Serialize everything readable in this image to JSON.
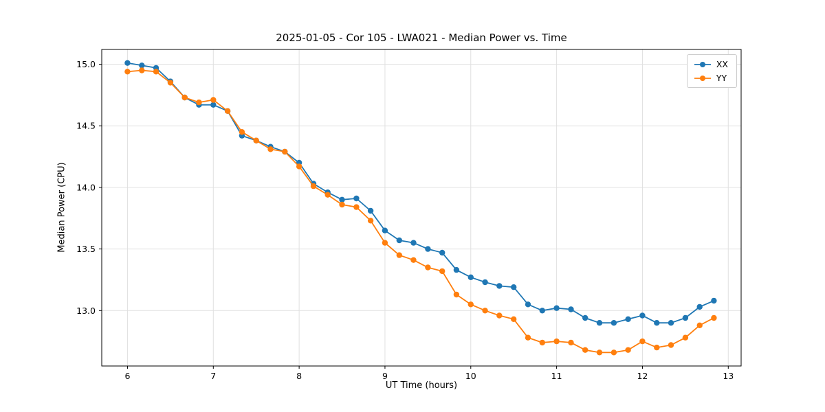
{
  "chart_data": {
    "type": "line",
    "title": "2025-01-05 - Cor 105 - LWA021 - Median Power vs. Time",
    "xlabel": "UT Time (hours)",
    "ylabel": "Median Power (CPU)",
    "xlim": [
      5.7,
      13.15
    ],
    "ylim": [
      12.55,
      15.12
    ],
    "xticks": [
      6,
      7,
      8,
      9,
      10,
      11,
      12,
      13
    ],
    "yticks": [
      13.0,
      13.5,
      14.0,
      14.5,
      15.0
    ],
    "ytick_labels": [
      "13.0",
      "13.5",
      "14.0",
      "14.5",
      "15.0"
    ],
    "grid": true,
    "legend_position": "upper right",
    "x": [
      6.0,
      6.167,
      6.333,
      6.5,
      6.667,
      6.833,
      7.0,
      7.167,
      7.333,
      7.5,
      7.667,
      7.833,
      8.0,
      8.167,
      8.333,
      8.5,
      8.667,
      8.833,
      9.0,
      9.167,
      9.333,
      9.5,
      9.667,
      9.833,
      10.0,
      10.167,
      10.333,
      10.5,
      10.667,
      10.833,
      11.0,
      11.167,
      11.333,
      11.5,
      11.667,
      11.833,
      12.0,
      12.167,
      12.333,
      12.5,
      12.667,
      12.833
    ],
    "series": [
      {
        "name": "XX",
        "color": "#1f77b4",
        "values": [
          15.01,
          14.99,
          14.97,
          14.86,
          14.73,
          14.67,
          14.67,
          14.62,
          14.42,
          14.38,
          14.33,
          14.29,
          14.2,
          14.03,
          13.96,
          13.9,
          13.91,
          13.81,
          13.65,
          13.57,
          13.55,
          13.5,
          13.47,
          13.33,
          13.27,
          13.23,
          13.2,
          13.19,
          13.05,
          13.0,
          13.02,
          13.01,
          12.94,
          12.9,
          12.9,
          12.93,
          12.96,
          12.9,
          12.9,
          12.94,
          13.03,
          13.08
        ]
      },
      {
        "name": "YY",
        "color": "#ff7f0e",
        "values": [
          14.94,
          14.95,
          14.94,
          14.85,
          14.73,
          14.69,
          14.71,
          14.62,
          14.45,
          14.38,
          14.31,
          14.29,
          14.17,
          14.01,
          13.94,
          13.86,
          13.84,
          13.73,
          13.55,
          13.45,
          13.41,
          13.35,
          13.32,
          13.13,
          13.05,
          13.0,
          12.96,
          12.93,
          12.78,
          12.74,
          12.75,
          12.74,
          12.68,
          12.66,
          12.66,
          12.68,
          12.75,
          12.7,
          12.72,
          12.78,
          12.88,
          12.94
        ]
      }
    ]
  }
}
